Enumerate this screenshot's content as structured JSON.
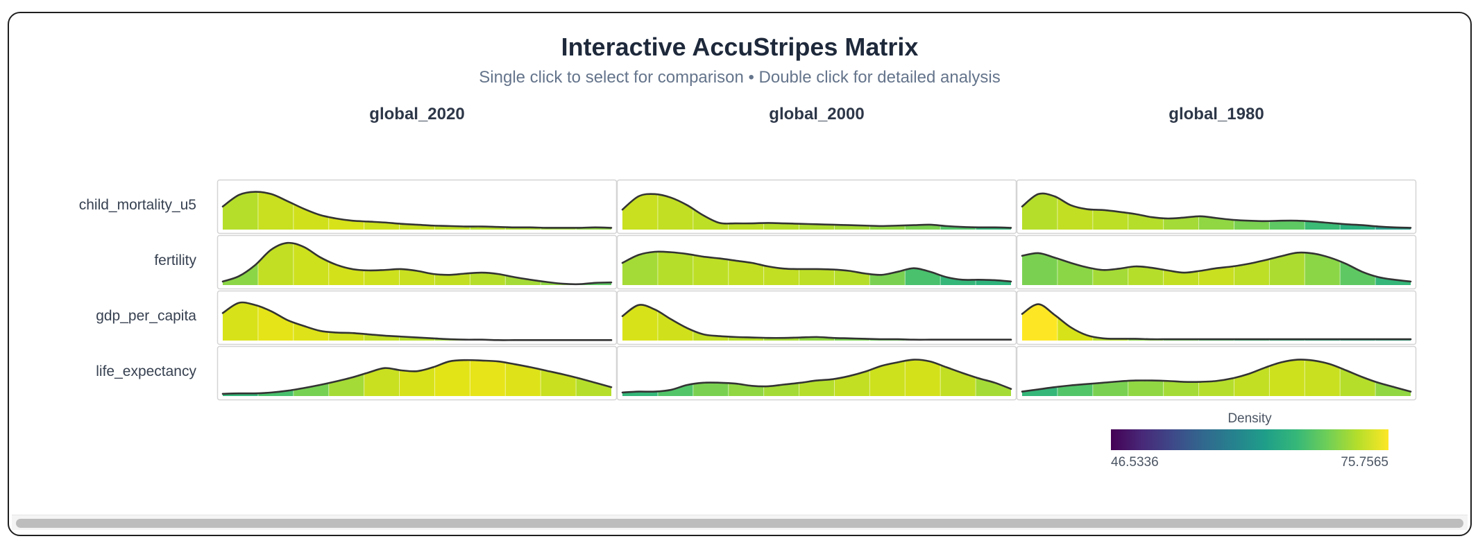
{
  "header": {
    "title": "Interactive AccuStripes Matrix",
    "subtitle": "Single click to select for comparison • Double click for detailed analysis"
  },
  "chart_data": {
    "type": "area",
    "columns": [
      "global_2020",
      "global_2000",
      "global_1980"
    ],
    "rows": [
      "child_mortality_u5",
      "fertility",
      "gdp_per_capita",
      "life_expectancy"
    ],
    "bins": 11,
    "density_profiles": {
      "global_2020": {
        "child_mortality_u5": [
          0.52,
          0.78,
          0.85,
          0.8,
          0.64,
          0.47,
          0.33,
          0.25,
          0.2,
          0.18,
          0.16,
          0.13,
          0.11,
          0.09,
          0.08,
          0.07,
          0.07,
          0.06,
          0.05,
          0.05,
          0.04,
          0.04,
          0.04,
          0.05,
          0.04
        ],
        "fertility": [
          0.08,
          0.2,
          0.45,
          0.8,
          0.95,
          0.86,
          0.63,
          0.46,
          0.36,
          0.33,
          0.34,
          0.36,
          0.32,
          0.25,
          0.23,
          0.26,
          0.28,
          0.25,
          0.18,
          0.12,
          0.07,
          0.03,
          0.02,
          0.05,
          0.06
        ],
        "gdp_per_capita": [
          0.62,
          0.85,
          0.8,
          0.66,
          0.46,
          0.33,
          0.22,
          0.18,
          0.17,
          0.14,
          0.11,
          0.09,
          0.07,
          0.05,
          0.03,
          0.02,
          0.02,
          0.01,
          0.01,
          0.01,
          0.01,
          0.01,
          0.01,
          0.01,
          0.01
        ],
        "life_expectancy": [
          0.05,
          0.06,
          0.06,
          0.08,
          0.12,
          0.18,
          0.25,
          0.33,
          0.42,
          0.53,
          0.63,
          0.58,
          0.56,
          0.65,
          0.78,
          0.81,
          0.8,
          0.78,
          0.72,
          0.65,
          0.57,
          0.49,
          0.4,
          0.3,
          0.2
        ]
      },
      "global_2000": {
        "child_mortality_u5": [
          0.45,
          0.75,
          0.8,
          0.72,
          0.55,
          0.32,
          0.15,
          0.14,
          0.14,
          0.15,
          0.14,
          0.13,
          0.12,
          0.11,
          0.1,
          0.09,
          0.08,
          0.09,
          0.1,
          0.11,
          0.08,
          0.06,
          0.05,
          0.05,
          0.04
        ],
        "fertility": [
          0.5,
          0.68,
          0.75,
          0.74,
          0.7,
          0.64,
          0.6,
          0.55,
          0.5,
          0.42,
          0.37,
          0.36,
          0.36,
          0.35,
          0.32,
          0.26,
          0.23,
          0.3,
          0.38,
          0.3,
          0.18,
          0.12,
          0.12,
          0.11,
          0.08
        ],
        "gdp_per_capita": [
          0.55,
          0.8,
          0.7,
          0.48,
          0.28,
          0.14,
          0.1,
          0.08,
          0.07,
          0.06,
          0.06,
          0.07,
          0.08,
          0.06,
          0.05,
          0.04,
          0.03,
          0.03,
          0.02,
          0.02,
          0.02,
          0.02,
          0.02,
          0.02,
          0.02
        ],
        "life_expectancy": [
          0.08,
          0.1,
          0.1,
          0.14,
          0.25,
          0.3,
          0.3,
          0.28,
          0.23,
          0.22,
          0.26,
          0.3,
          0.35,
          0.38,
          0.45,
          0.55,
          0.68,
          0.76,
          0.82,
          0.78,
          0.65,
          0.52,
          0.4,
          0.3,
          0.16
        ]
      },
      "global_1980": {
        "child_mortality_u5": [
          0.52,
          0.8,
          0.75,
          0.55,
          0.46,
          0.44,
          0.4,
          0.35,
          0.28,
          0.25,
          0.27,
          0.3,
          0.26,
          0.22,
          0.2,
          0.19,
          0.2,
          0.2,
          0.18,
          0.15,
          0.12,
          0.1,
          0.07,
          0.05,
          0.04
        ],
        "fertility": [
          0.66,
          0.72,
          0.62,
          0.5,
          0.4,
          0.34,
          0.37,
          0.42,
          0.39,
          0.33,
          0.28,
          0.32,
          0.38,
          0.42,
          0.48,
          0.56,
          0.65,
          0.73,
          0.71,
          0.62,
          0.48,
          0.3,
          0.18,
          0.12,
          0.08
        ],
        "gdp_per_capita": [
          0.6,
          0.82,
          0.58,
          0.3,
          0.12,
          0.05,
          0.04,
          0.04,
          0.03,
          0.03,
          0.03,
          0.03,
          0.03,
          0.03,
          0.03,
          0.03,
          0.03,
          0.03,
          0.03,
          0.03,
          0.03,
          0.03,
          0.03,
          0.03,
          0.03
        ],
        "life_expectancy": [
          0.1,
          0.15,
          0.2,
          0.24,
          0.27,
          0.3,
          0.33,
          0.35,
          0.35,
          0.34,
          0.32,
          0.32,
          0.34,
          0.4,
          0.5,
          0.64,
          0.76,
          0.82,
          0.8,
          0.72,
          0.58,
          0.43,
          0.3,
          0.2,
          0.1
        ]
      }
    },
    "stripe_colors": {
      "global_2020": {
        "child_mortality_u5": [
          "#b5de2b",
          "#c8e020",
          "#d0e11c",
          "#d8e219",
          "#cde11d",
          "#c8e020",
          "#bddf26",
          "#b5de2b",
          "#addc30",
          "#a0da39",
          "#90d743"
        ],
        "fertility": [
          "#8bd646",
          "#c2df23",
          "#cde11d",
          "#d3e11b",
          "#cde11d",
          "#c8e020",
          "#c2df23",
          "#b5de2b",
          "#a5db36",
          "#90d743",
          "#5ec962"
        ],
        "gdp_per_capita": [
          "#d8e219",
          "#e5e419",
          "#dde318",
          "#d0e11c",
          "#c2df23",
          "#b5de2b",
          "#a0da39",
          "#8bd646",
          "#6ece58",
          "#52c569",
          "#3bbb75"
        ],
        "life_expectancy": [
          "#35b779",
          "#49c16d",
          "#76d153",
          "#a5db36",
          "#c8e020",
          "#d8e219",
          "#e2e418",
          "#e7e419",
          "#dde318",
          "#c8e020",
          "#b5de2b"
        ]
      },
      "global_2000": {
        "child_mortality_u5": [
          "#c8e020",
          "#c2df23",
          "#bddf26",
          "#bddf26",
          "#b5de2b",
          "#addc30",
          "#a5db36",
          "#90d743",
          "#7ad151",
          "#52c569",
          "#35b779"
        ],
        "fertility": [
          "#a5db36",
          "#b5de2b",
          "#bddf26",
          "#c2df23",
          "#c2df23",
          "#bddf26",
          "#b5de2b",
          "#7ad151",
          "#49c16d",
          "#35b779",
          "#2fb47c"
        ],
        "gdp_per_capita": [
          "#d8e219",
          "#d0e11c",
          "#c2df23",
          "#b5de2b",
          "#a5db36",
          "#90d743",
          "#7ad151",
          "#6ece58",
          "#5ec962",
          "#52c569",
          "#3bbb75"
        ],
        "life_expectancy": [
          "#35b779",
          "#52c569",
          "#7ad151",
          "#90d743",
          "#a5db36",
          "#b5de2b",
          "#c2df23",
          "#cde11d",
          "#d3e11b",
          "#c2df23",
          "#a5db36"
        ]
      },
      "global_1980": {
        "child_mortality_u5": [
          "#b5de2b",
          "#c2df23",
          "#bddf26",
          "#b5de2b",
          "#a5db36",
          "#90d743",
          "#7ad151",
          "#5ec962",
          "#3bbb75",
          "#2ab07f",
          "#2a9f8a"
        ],
        "fertility": [
          "#7ad151",
          "#8bd646",
          "#a5db36",
          "#b5de2b",
          "#c2df23",
          "#c8e020",
          "#bddf26",
          "#addc30",
          "#8bd646",
          "#5ec962",
          "#35b779"
        ],
        "gdp_per_capita": [
          "#fde725",
          "#d8e219",
          "#b5de2b",
          "#8bd646",
          "#6ece58",
          "#52c569",
          "#3bbb75",
          "#2fb47c",
          "#2ab07f",
          "#29af7f",
          "#28ae80"
        ],
        "life_expectancy": [
          "#35b779",
          "#52c569",
          "#7ad151",
          "#90d743",
          "#a5db36",
          "#b5de2b",
          "#c2df23",
          "#cde11d",
          "#c8e020",
          "#b5de2b",
          "#90d743"
        ]
      }
    },
    "legend": {
      "title": "Density",
      "min": "46.5336",
      "max": "75.7565",
      "min_value": 46.5336,
      "max_value": 75.7565,
      "colors": [
        "#440154",
        "#482878",
        "#3e4989",
        "#31688e",
        "#26828e",
        "#1f9e89",
        "#35b779",
        "#6ece58",
        "#b5de2b",
        "#fde725"
      ],
      "placement": "bottom-right"
    }
  }
}
